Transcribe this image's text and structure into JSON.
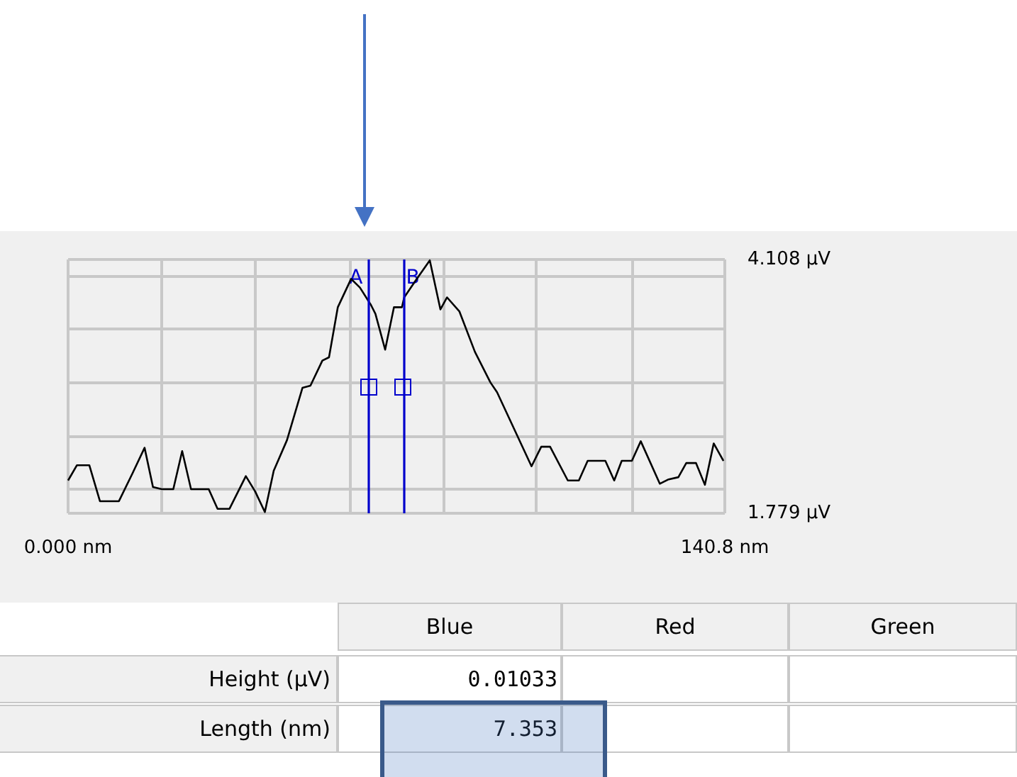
{
  "chart_data": {
    "type": "line",
    "color": "#000000",
    "x": [
      0,
      1.9,
      4.55,
      6.83,
      10.9,
      13.75,
      16.4,
      18.2,
      20.1,
      22.56,
      24.46,
      26.36,
      30.15,
      32.05,
      34.61,
      38.11,
      40.1,
      42.19,
      44.09,
      46.93,
      50.25,
      51.96,
      54.52,
      55.94,
      57.83,
      60.68,
      62.57,
      64.94,
      65.89,
      67.98,
      69.87,
      71.58,
      72.06,
      74.43,
      77.55,
      79.83,
      81.25,
      83.91,
      87.23,
      90.54,
      91.97,
      99.36,
      101.45,
      103.34,
      107.14,
      109.51,
      111.4,
      115.19,
      117.09,
      118.7,
      120.88,
      122.78,
      126.86,
      128.75,
      130.84,
      132.54,
      134.63,
      136.53,
      138.42,
      140.51
    ],
    "values": [
      2.08,
      2.22,
      2.22,
      1.89,
      1.89,
      2.14,
      2.38,
      2.02,
      2.0,
      2.0,
      2.35,
      2.0,
      2.0,
      1.82,
      1.82,
      2.12,
      1.98,
      1.79,
      2.17,
      2.45,
      2.93,
      2.95,
      3.18,
      3.21,
      3.67,
      3.93,
      3.85,
      3.69,
      3.61,
      3.28,
      3.67,
      3.67,
      3.76,
      3.91,
      4.1,
      3.65,
      3.76,
      3.63,
      3.26,
      2.98,
      2.89,
      2.21,
      2.39,
      2.39,
      2.08,
      2.08,
      2.26,
      2.26,
      2.08,
      2.26,
      2.26,
      2.44,
      2.05,
      2.09,
      2.11,
      2.24,
      2.24,
      2.04,
      2.42,
      2.26
    ],
    "xlim": [
      0,
      140.8
    ],
    "xticks": [
      {
        "value": 0,
        "label": "0.000 nm"
      },
      {
        "value": 20.1,
        "label": null
      },
      {
        "value": 40.1,
        "label": null
      },
      {
        "value": 60.4,
        "label": null
      },
      {
        "value": 80.4,
        "label": null
      },
      {
        "value": 100.3,
        "label": null
      },
      {
        "value": 120.9,
        "label": null
      },
      {
        "value": 140.8,
        "label": "140.8 nm"
      }
    ],
    "ylim": [
      1.779,
      4.108
    ],
    "yticks": [
      {
        "value": 1.779,
        "label": "1.779 µV"
      },
      {
        "value": 2.0,
        "label": null
      },
      {
        "value": 2.48,
        "label": null
      },
      {
        "value": 2.98,
        "label": null
      },
      {
        "value": 3.48,
        "label": null
      },
      {
        "value": 3.96,
        "label": null
      },
      {
        "value": 4.108,
        "label": "4.108 µV"
      }
    ],
    "grid": true,
    "marker": "none",
    "line_style": "solid",
    "ref_lines": [
      {
        "axis": "x",
        "value": 64.5,
        "label": "A",
        "color": "#0000cc"
      },
      {
        "axis": "x",
        "value": 71.85,
        "label": "B",
        "color": "#0000cc"
      }
    ],
    "annotations": [
      "Blue",
      "Red",
      "Green",
      "Height (µV)",
      "0.01033",
      "Length (nm)",
      "7.353"
    ]
  }
}
